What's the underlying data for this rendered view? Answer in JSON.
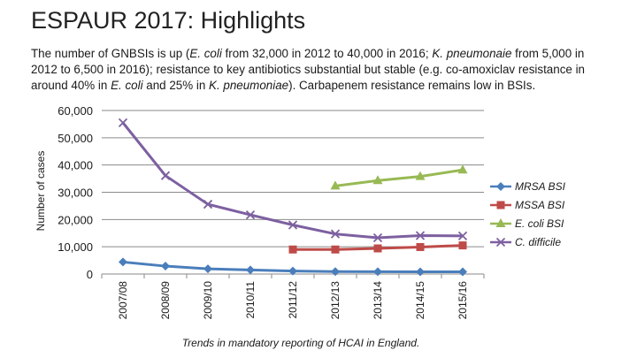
{
  "slide": {
    "title": "ESPAUR 2017: Highlights",
    "body": {
      "t1": "The number of GNBSIs is up (",
      "i1": "E. coli",
      "t2": " from 32,000 in 2012 to 40,000 in 2016; ",
      "i2": "K. pneumonaie",
      "t3": " from 5,000 in 2012 to 6,500 in 2016); resistance to key antibiotics substantial but stable (e.g. co-amoxiclav resistance in around 40% in ",
      "i3": "E. coli",
      "t4": " and 25% in ",
      "i4": "K. pneumoniae",
      "t5": "). Carbapenem resistance remains low in BSIs."
    }
  },
  "chart_data": {
    "type": "line",
    "title": "",
    "xlabel": "Trends in mandatory reporting of HCAI in England.",
    "ylabel": "Number of cases",
    "ylim": [
      0,
      60000
    ],
    "yticks": [
      0,
      10000,
      20000,
      30000,
      40000,
      50000,
      60000
    ],
    "ytick_labels": [
      "0",
      "10,000",
      "20,000",
      "30,000",
      "40,000",
      "50,000",
      "60,000"
    ],
    "categories": [
      "2007/08",
      "2008/09",
      "2009/10",
      "2010/11",
      "2011/12",
      "2012/13",
      "2013/14",
      "2014/15",
      "2015/16"
    ],
    "grid": true,
    "legend_position": "right",
    "series": [
      {
        "name": "MRSA BSI",
        "color": "#4a7ebb",
        "marker": "diamond",
        "values": [
          4400,
          2900,
          1900,
          1500,
          1100,
          900,
          850,
          800,
          800
        ]
      },
      {
        "name": "MSSA BSI",
        "color": "#be4b48",
        "marker": "square",
        "values": [
          null,
          null,
          null,
          null,
          9000,
          9000,
          9400,
          9900,
          10500
        ]
      },
      {
        "name": "E. coli BSI",
        "color": "#98b954",
        "marker": "triangle",
        "values": [
          null,
          null,
          null,
          null,
          null,
          32300,
          34300,
          35800,
          38200
        ]
      },
      {
        "name": "C. difficile",
        "color": "#7d60a0",
        "marker": "x",
        "values": [
          55500,
          36100,
          25600,
          21700,
          18000,
          14700,
          13300,
          14100,
          14000
        ]
      }
    ]
  }
}
